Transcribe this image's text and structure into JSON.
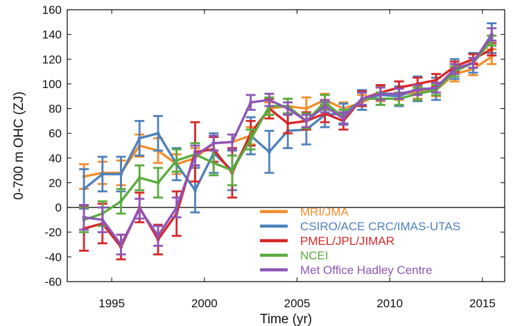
{
  "chart_data": {
    "type": "line",
    "xlabel": "Time (yr)",
    "ylabel": "0-700 m OHC (ZJ)",
    "xlim": [
      1992.6,
      2016.2
    ],
    "ylim": [
      -60,
      160
    ],
    "x_ticks": [
      1995,
      2000,
      2005,
      2010,
      2015
    ],
    "y_ticks": [
      -60,
      -40,
      -20,
      0,
      20,
      40,
      60,
      80,
      100,
      120,
      140,
      160
    ],
    "grid": false,
    "legend_position": "bottom-right",
    "x": [
      1993.5,
      1994.5,
      1995.5,
      1996.5,
      1997.5,
      1998.5,
      1999.5,
      2000.5,
      2001.5,
      2002.5,
      2003.5,
      2004.5,
      2005.5,
      2006.5,
      2007.5,
      2008.5,
      2009.5,
      2010.5,
      2011.5,
      2012.5,
      2013.5,
      2014.5,
      2015.5
    ],
    "series": [
      {
        "name": "MRI/JMA",
        "color": "#f28e2b",
        "values": [
          25,
          28,
          28,
          50,
          46,
          35,
          40,
          52,
          53,
          58,
          80,
          82,
          80,
          87,
          80,
          85,
          92,
          92,
          93,
          95,
          108,
          112,
          122
        ],
        "errors": [
          10,
          9,
          10,
          9,
          10,
          8,
          8,
          6,
          6,
          7,
          5,
          6,
          9,
          5,
          5,
          6,
          6,
          5,
          5,
          5,
          6,
          5,
          6
        ]
      },
      {
        "name": "CSIRO/ACE CRC/IMAS-UTAS",
        "color": "#4e81bd",
        "values": [
          15,
          27,
          27,
          56,
          60,
          35,
          14,
          44,
          30,
          58,
          45,
          62,
          63,
          75,
          76,
          87,
          91,
          90,
          96,
          96,
          112,
          117,
          137
        ],
        "errors": [
          16,
          14,
          14,
          14,
          14,
          13,
          18,
          16,
          16,
          15,
          17,
          14,
          12,
          10,
          8,
          8,
          8,
          8,
          10,
          9,
          8,
          8,
          12
        ]
      },
      {
        "name": "PMEL/JPL/JIMAR",
        "color": "#d62728",
        "values": [
          -17,
          -13,
          -32,
          0,
          -26,
          -5,
          45,
          47,
          28,
          60,
          80,
          68,
          70,
          76,
          70,
          88,
          93,
          97,
          100,
          103,
          114,
          120,
          128
        ],
        "errors": [
          18,
          16,
          10,
          12,
          12,
          18,
          24,
          10,
          20,
          10,
          8,
          8,
          7,
          7,
          7,
          6,
          6,
          5,
          5,
          5,
          4,
          4,
          5
        ]
      },
      {
        "name": "NCEI",
        "color": "#5aab3e",
        "values": [
          -10,
          -5,
          5,
          24,
          20,
          38,
          43,
          36,
          30,
          55,
          82,
          82,
          70,
          85,
          73,
          88,
          88,
          88,
          92,
          95,
          110,
          117,
          135
        ],
        "errors": [
          10,
          10,
          10,
          10,
          12,
          9,
          9,
          10,
          12,
          8,
          7,
          6,
          6,
          6,
          6,
          5,
          5,
          5,
          5,
          4,
          4,
          4,
          4
        ]
      },
      {
        "name": "Met Office Hadley Centre",
        "color": "#8e55b5",
        "values": [
          -8,
          -10,
          -30,
          -1,
          -23,
          0,
          42,
          52,
          53,
          85,
          87,
          80,
          70,
          82,
          72,
          88,
          92,
          92,
          95,
          97,
          112,
          117,
          140
        ],
        "errors": [
          10,
          10,
          8,
          8,
          8,
          8,
          8,
          6,
          6,
          6,
          5,
          5,
          5,
          5,
          5,
          5,
          5,
          4,
          4,
          4,
          4,
          4,
          5
        ]
      }
    ]
  }
}
